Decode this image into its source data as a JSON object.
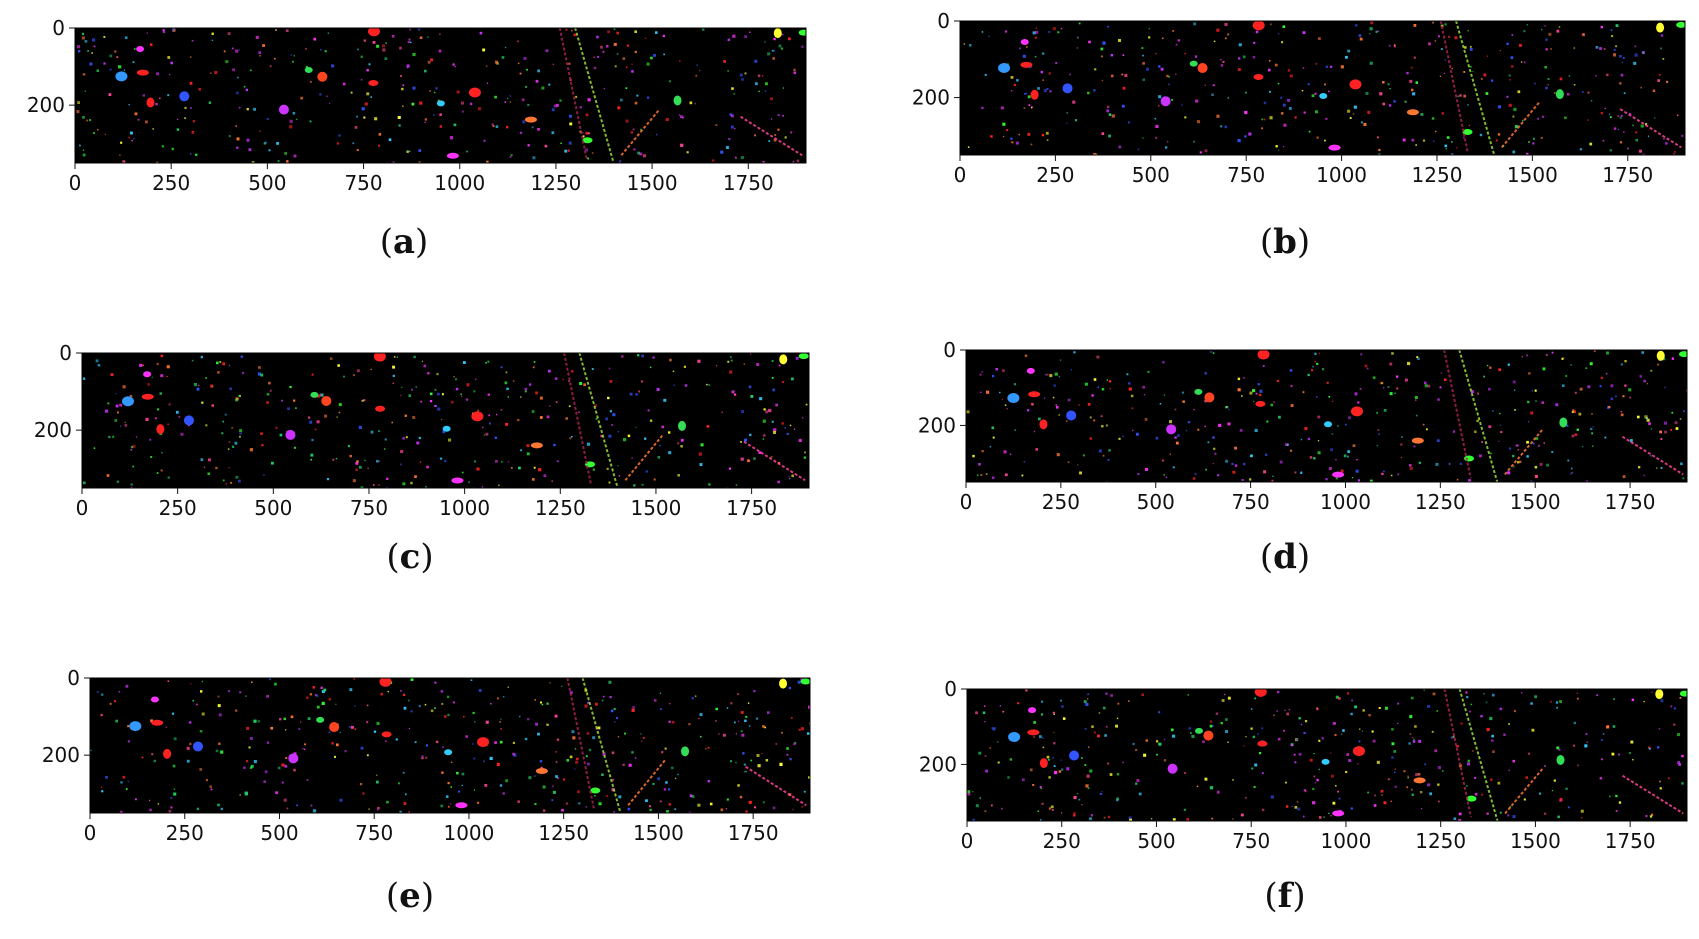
{
  "figure": {
    "background": "#ffffff",
    "image_background": "#000000",
    "tick_color": "#111111"
  },
  "chart_data": [
    {
      "type": "heatmap",
      "panel": "a",
      "caption_letter": "a",
      "title": "",
      "xlabel": "",
      "ylabel": "",
      "xlim": [
        0,
        1900
      ],
      "ylim": [
        350,
        0
      ],
      "xticks": [
        0,
        250,
        500,
        750,
        1000,
        1250,
        1500,
        1750
      ],
      "xtick_labels": [
        "0",
        "250",
        "500",
        "750",
        "1000",
        "1250",
        "1500",
        "1750"
      ],
      "yticks": [
        0,
        200
      ],
      "ytick_labels": [
        "0",
        "200"
      ],
      "grid": false
    },
    {
      "type": "heatmap",
      "panel": "b",
      "caption_letter": "b",
      "title": "",
      "xlabel": "",
      "ylabel": "",
      "xlim": [
        0,
        1900
      ],
      "ylim": [
        350,
        0
      ],
      "xticks": [
        0,
        250,
        500,
        750,
        1000,
        1250,
        1500,
        1750
      ],
      "xtick_labels": [
        "0",
        "250",
        "500",
        "750",
        "1000",
        "1250",
        "1500",
        "1750"
      ],
      "yticks": [
        0,
        200
      ],
      "ytick_labels": [
        "0",
        "200"
      ],
      "grid": false
    },
    {
      "type": "heatmap",
      "panel": "c",
      "caption_letter": "c",
      "title": "",
      "xlabel": "",
      "ylabel": "",
      "xlim": [
        0,
        1900
      ],
      "ylim": [
        350,
        0
      ],
      "xticks": [
        0,
        250,
        500,
        750,
        1000,
        1250,
        1500,
        1750
      ],
      "xtick_labels": [
        "0",
        "250",
        "500",
        "750",
        "1000",
        "1250",
        "1500",
        "1750"
      ],
      "yticks": [
        0,
        200
      ],
      "ytick_labels": [
        "0",
        "200"
      ],
      "grid": false
    },
    {
      "type": "heatmap",
      "panel": "d",
      "caption_letter": "d",
      "title": "",
      "xlabel": "",
      "ylabel": "",
      "xlim": [
        0,
        1900
      ],
      "ylim": [
        350,
        0
      ],
      "xticks": [
        0,
        250,
        500,
        750,
        1000,
        1250,
        1500,
        1750
      ],
      "xtick_labels": [
        "0",
        "250",
        "500",
        "750",
        "1000",
        "1250",
        "1500",
        "1750"
      ],
      "yticks": [
        0,
        200
      ],
      "ytick_labels": [
        "0",
        "200"
      ],
      "grid": false
    },
    {
      "type": "heatmap",
      "panel": "e",
      "caption_letter": "e",
      "title": "",
      "xlabel": "",
      "ylabel": "",
      "xlim": [
        0,
        1900
      ],
      "ylim": [
        350,
        0
      ],
      "xticks": [
        0,
        250,
        500,
        750,
        1000,
        1250,
        1500,
        1750
      ],
      "xtick_labels": [
        "0",
        "250",
        "500",
        "750",
        "1000",
        "1250",
        "1500",
        "1750"
      ],
      "yticks": [
        0,
        200
      ],
      "ytick_labels": [
        "0",
        "200"
      ],
      "grid": false
    },
    {
      "type": "heatmap",
      "panel": "f",
      "caption_letter": "f",
      "title": "",
      "xlabel": "",
      "ylabel": "",
      "xlim": [
        0,
        1900
      ],
      "ylim": [
        350,
        0
      ],
      "xticks": [
        0,
        250,
        500,
        750,
        1000,
        1250,
        1500,
        1750
      ],
      "xtick_labels": [
        "0",
        "250",
        "500",
        "750",
        "1000",
        "1250",
        "1500",
        "1750"
      ],
      "yticks": [
        0,
        200
      ],
      "ytick_labels": [
        "0",
        "200"
      ],
      "grid": false
    }
  ],
  "features": [
    {
      "kind": "blob",
      "x": 170,
      "y": 55,
      "color": "#ff33ff"
    },
    {
      "kind": "blob",
      "x": 280,
      "y": 175,
      "color": "#3355ff"
    },
    {
      "kind": "blob",
      "x": 175,
      "y": 115,
      "color": "#ff2222"
    },
    {
      "kind": "blob",
      "x": 200,
      "y": 195,
      "color": "#ff2222"
    },
    {
      "kind": "blob",
      "x": 780,
      "y": 145,
      "color": "#ff2222"
    },
    {
      "kind": "blob",
      "x": 780,
      "y": 10,
      "color": "#ff2222"
    },
    {
      "kind": "blob",
      "x": 610,
      "y": 110,
      "color": "#33dd55"
    },
    {
      "kind": "blob",
      "x": 640,
      "y": 125,
      "color": "#ff4422"
    },
    {
      "kind": "blob",
      "x": 980,
      "y": 330,
      "color": "#ff33ff"
    },
    {
      "kind": "blob",
      "x": 1570,
      "y": 190,
      "color": "#33dd55"
    },
    {
      "kind": "blob",
      "x": 1330,
      "y": 290,
      "color": "#33ff33"
    },
    {
      "kind": "blob",
      "x": 1035,
      "y": 165,
      "color": "#ff2222"
    },
    {
      "kind": "blob",
      "x": 950,
      "y": 195,
      "color": "#33ccff"
    },
    {
      "kind": "blob",
      "x": 540,
      "y": 210,
      "color": "#cc33ff"
    },
    {
      "kind": "blob",
      "x": 1190,
      "y": 240,
      "color": "#ff7733"
    },
    {
      "kind": "blob",
      "x": 1830,
      "y": 15,
      "color": "#ffff33"
    },
    {
      "kind": "blob",
      "x": 1890,
      "y": 10,
      "color": "#33ff33"
    },
    {
      "kind": "blob",
      "x": 120,
      "y": 125,
      "color": "#3399ff"
    },
    {
      "kind": "line",
      "x1": 1260,
      "y1": 0,
      "x2": 1330,
      "y2": 340,
      "color": "#aa2255"
    },
    {
      "kind": "line",
      "x1": 1300,
      "y1": 0,
      "x2": 1400,
      "y2": 350,
      "color": "#99dd33"
    },
    {
      "kind": "line",
      "x1": 1420,
      "y1": 330,
      "x2": 1520,
      "y2": 210,
      "color": "#ff7733"
    },
    {
      "kind": "line",
      "x1": 1730,
      "y1": 230,
      "x2": 1890,
      "y2": 330,
      "color": "#ff4499"
    }
  ],
  "speckle_palette": [
    "#ffff33",
    "#33ff33",
    "#ff2222",
    "#3355ff",
    "#ff33ff",
    "#33ccff",
    "#ff7733",
    "#cc33ff",
    "#22cc66",
    "#ff4499"
  ]
}
